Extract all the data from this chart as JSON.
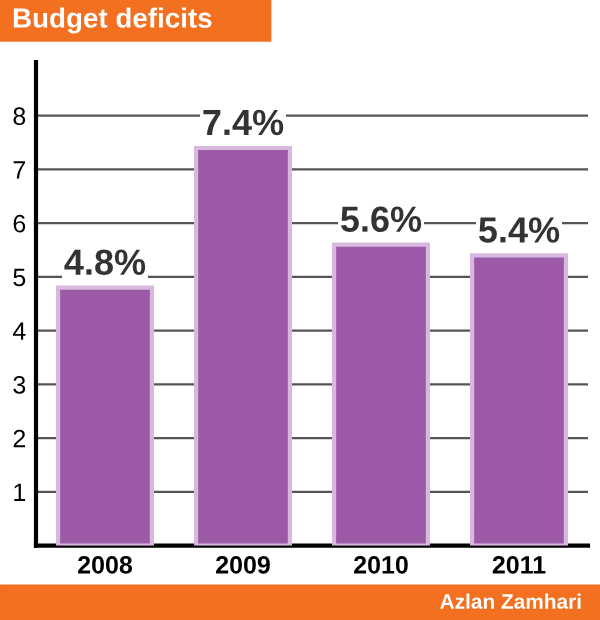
{
  "chart_data": {
    "type": "bar",
    "title": "Budget deficits",
    "categories": [
      "2008",
      "2009",
      "2010",
      "2011"
    ],
    "values": [
      4.8,
      7.4,
      5.6,
      5.4
    ],
    "value_labels": [
      "4.8%",
      "7.4%",
      "5.6%",
      "5.4%"
    ],
    "color": "#9c5aa6",
    "ylim": [
      0,
      9
    ],
    "yticks": [
      1,
      2,
      3,
      4,
      5,
      6,
      7,
      8
    ],
    "grid": "y",
    "annotations": [
      "Azlan Zamhari"
    ]
  }
}
